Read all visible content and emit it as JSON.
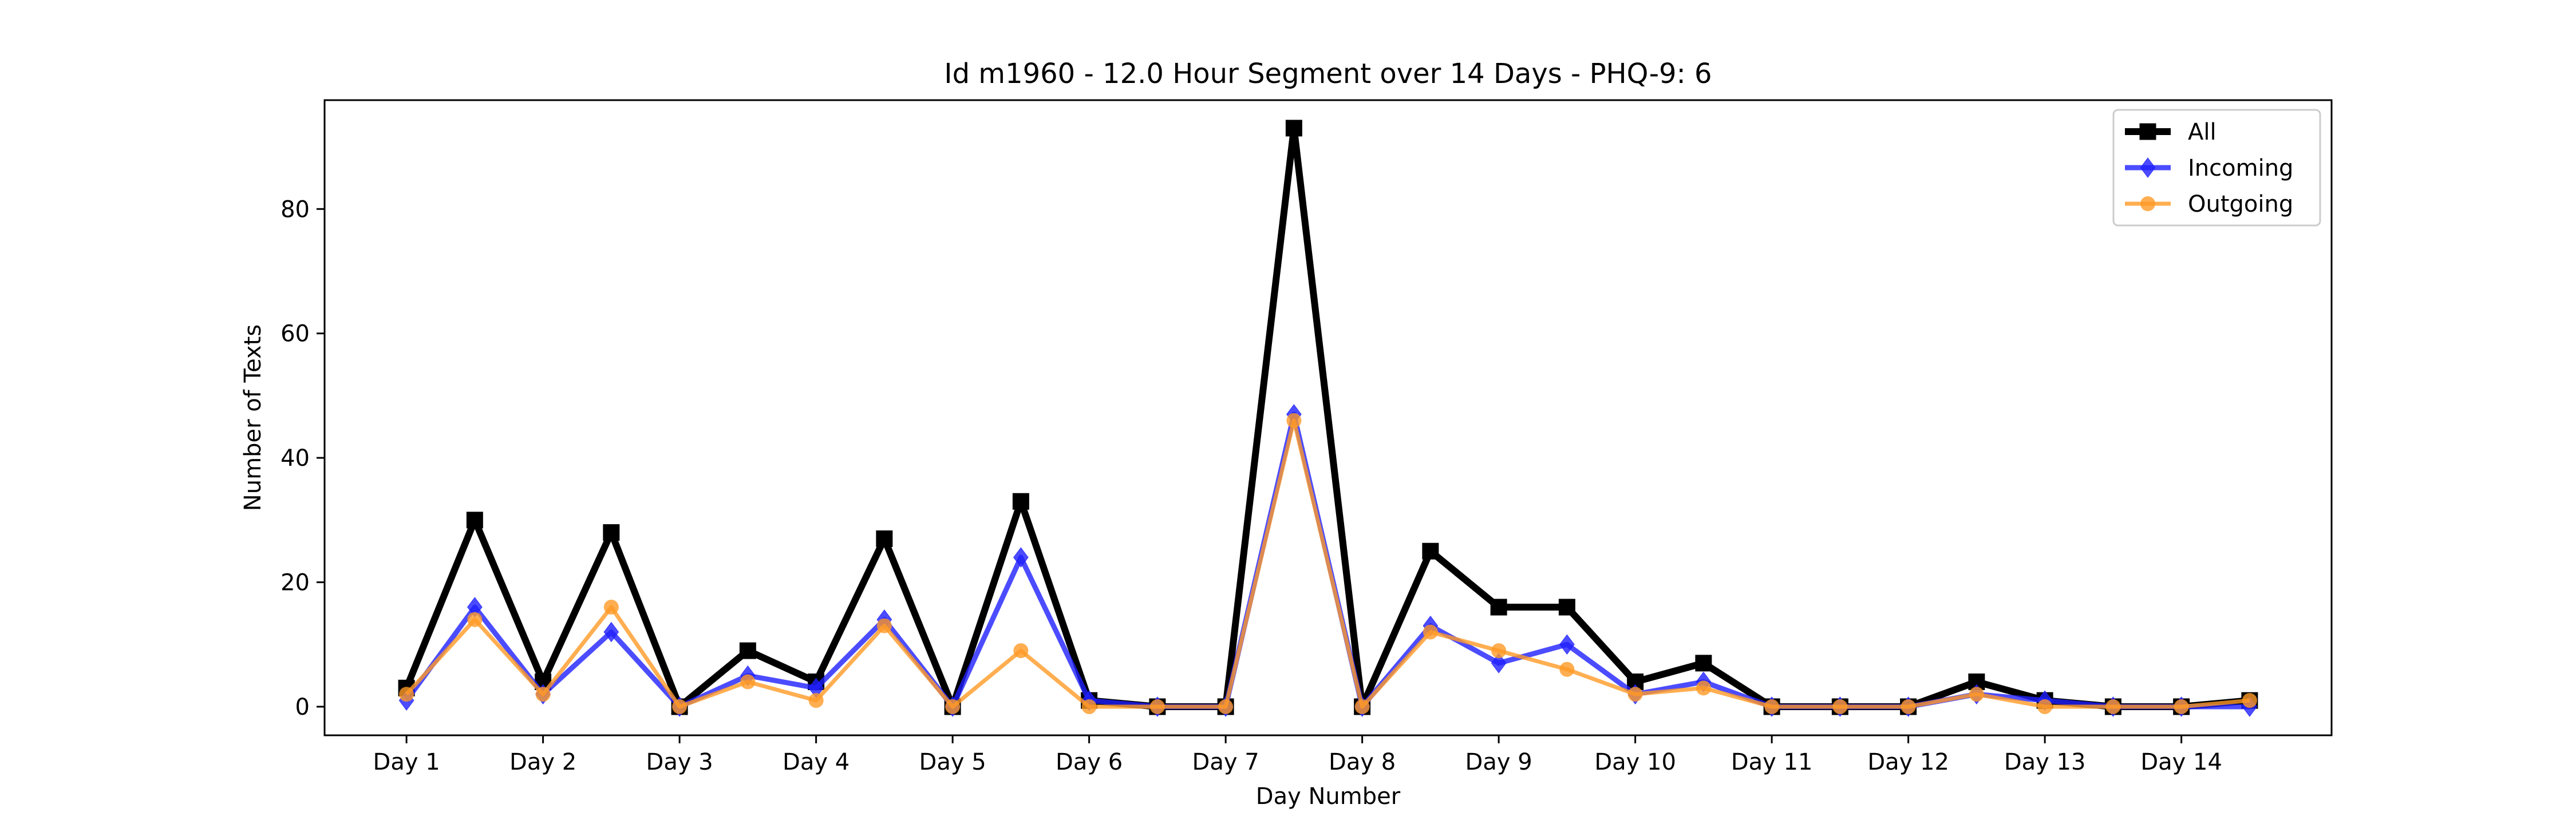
{
  "chart_data": {
    "type": "line",
    "title": "Id m1960 - 12.0 Hour Segment over 14 Days - PHQ-9: 6",
    "xlabel": "Day Number",
    "ylabel": "Number of Texts",
    "x_tick_labels": [
      "Day 1",
      "Day 2",
      "Day 3",
      "Day 4",
      "Day 5",
      "Day 6",
      "Day 7",
      "Day 8",
      "Day 9",
      "Day 10",
      "Day 11",
      "Day 12",
      "Day 13",
      "Day 14"
    ],
    "x": [
      1,
      1.5,
      2,
      2.5,
      3,
      3.5,
      4,
      4.5,
      5,
      5.5,
      6,
      6.5,
      7,
      7.5,
      8,
      8.5,
      9,
      9.5,
      10,
      10.5,
      11,
      11.5,
      12,
      12.5,
      13,
      13.5,
      14,
      14.5
    ],
    "xlim": [
      0.4,
      15.1
    ],
    "ylim": [
      -4.6,
      97.5
    ],
    "y_ticks": [
      0,
      20,
      40,
      60,
      80
    ],
    "grid": false,
    "legend_position": "top-right",
    "series": [
      {
        "name": "All",
        "color": "#000000",
        "marker": "square",
        "values": [
          3,
          30,
          4,
          28,
          0,
          9,
          4,
          27,
          0,
          33,
          1,
          0,
          0,
          93,
          0,
          25,
          16,
          16,
          4,
          7,
          0,
          0,
          0,
          4,
          1,
          0,
          0,
          1
        ]
      },
      {
        "name": "Incoming",
        "color": "#1f1fff",
        "marker": "diamond",
        "values": [
          1,
          16,
          2,
          12,
          0,
          5,
          3,
          14,
          0,
          24,
          1,
          0,
          0,
          47,
          0,
          13,
          7,
          10,
          2,
          4,
          0,
          0,
          0,
          2,
          1,
          0,
          0,
          0
        ]
      },
      {
        "name": "Outgoing",
        "color": "#ff9a26",
        "marker": "circle",
        "values": [
          2,
          14,
          2,
          16,
          0,
          4,
          1,
          13,
          0,
          9,
          0,
          0,
          0,
          46,
          0,
          12,
          9,
          6,
          2,
          3,
          0,
          0,
          0,
          2,
          0,
          0,
          0,
          1
        ]
      }
    ]
  }
}
